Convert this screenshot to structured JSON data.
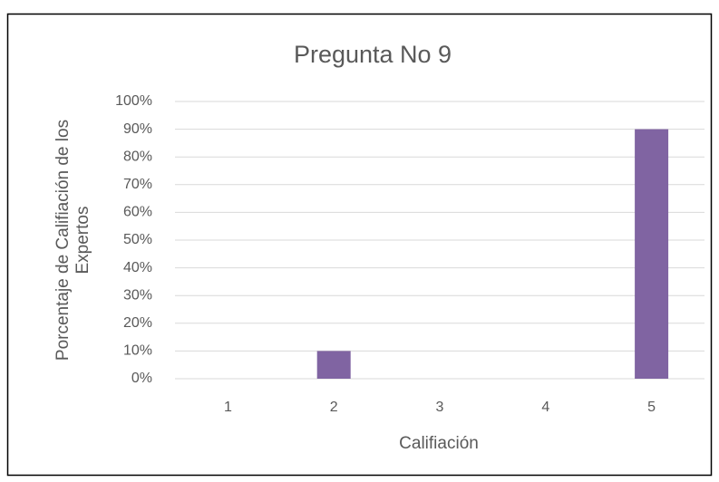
{
  "chart_data": {
    "type": "bar",
    "title": "Pregunta No 9",
    "x_label": "Califiación",
    "y_label": "Porcentaje de Califiación de los Expertos",
    "categories": [
      "1",
      "2",
      "3",
      "4",
      "5"
    ],
    "values": [
      0,
      10,
      0,
      0,
      90
    ],
    "color": "#8064a2",
    "ylim": [
      0,
      100
    ],
    "yticks": [
      {
        "value": 0,
        "label": "0%"
      },
      {
        "value": 10,
        "label": "10%"
      },
      {
        "value": 20,
        "label": "20%"
      },
      {
        "value": 30,
        "label": "30%"
      },
      {
        "value": 40,
        "label": "40%"
      },
      {
        "value": 50,
        "label": "50%"
      },
      {
        "value": 60,
        "label": "60%"
      },
      {
        "value": 70,
        "label": "70%"
      },
      {
        "value": 80,
        "label": "80%"
      },
      {
        "value": 90,
        "label": "90%"
      },
      {
        "value": 100,
        "label": "100%"
      }
    ],
    "grid": true
  }
}
